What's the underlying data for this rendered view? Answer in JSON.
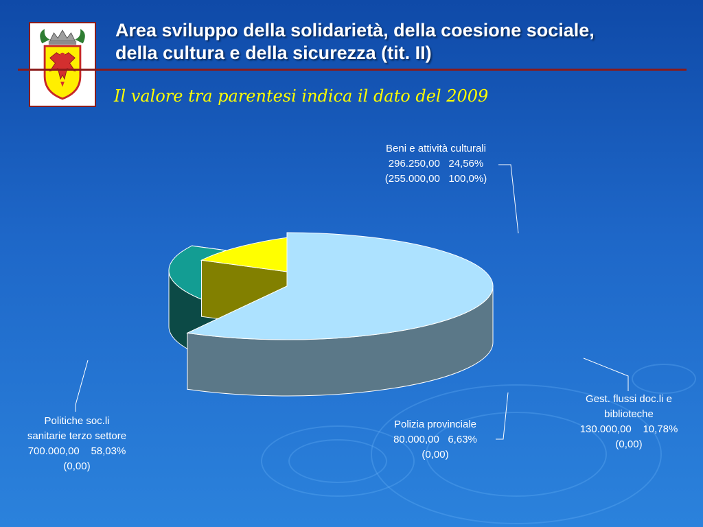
{
  "slide": {
    "title_line1": "Area sviluppo della solidarietà, della coesione sociale,",
    "title_line2": "della cultura e della sicurezza (tit. II)",
    "subtitle": "Il valore tra parentesi indica il dato del 2009"
  },
  "colors": {
    "background": "#1e67c8",
    "title_text": "#ffffff",
    "subtitle_text": "#ffff00",
    "rule": "#8a1a1a"
  },
  "chart_data": {
    "type": "pie",
    "style": "3d-exploded",
    "slices": [
      {
        "key": "politiche",
        "name_lines": [
          "Politiche soc.li",
          "sanitarie terzo settore"
        ],
        "amount_2010": "700.000,00",
        "percent": "58,03%",
        "amount_2009": "(0,00)",
        "value": 700000,
        "percent_value": 58.03,
        "value_2009": 0,
        "color": "#ade2ff",
        "side_color": "#5b7888"
      },
      {
        "key": "beni",
        "name_lines": [
          "Beni e attività culturali"
        ],
        "amount_2010": "296.250,00",
        "percent": "24,56%",
        "amount_2009": "(255.000,00",
        "percent_2009": "100,0%)",
        "value": 296250,
        "percent_value": 24.56,
        "value_2009": 255000,
        "color": "#139d93",
        "side_color": "#0c4a46"
      },
      {
        "key": "gestione",
        "name_lines": [
          "Gest. flussi doc.li e",
          "biblioteche"
        ],
        "amount_2010": "130.000,00",
        "percent": "10,78%",
        "amount_2009": "(0,00)",
        "value": 130000,
        "percent_value": 10.78,
        "value_2009": 0,
        "color": "#ffff00",
        "side_color": "#828000"
      },
      {
        "key": "polizia",
        "name_lines": [
          "Polizia provinciale"
        ],
        "amount_2010": "80.000,00",
        "percent": "6,63%",
        "amount_2009": "(0,00)",
        "value": 80000,
        "percent_value": 6.63,
        "value_2009": 0,
        "color": "#ff00ff",
        "side_color": "#800080"
      }
    ]
  }
}
